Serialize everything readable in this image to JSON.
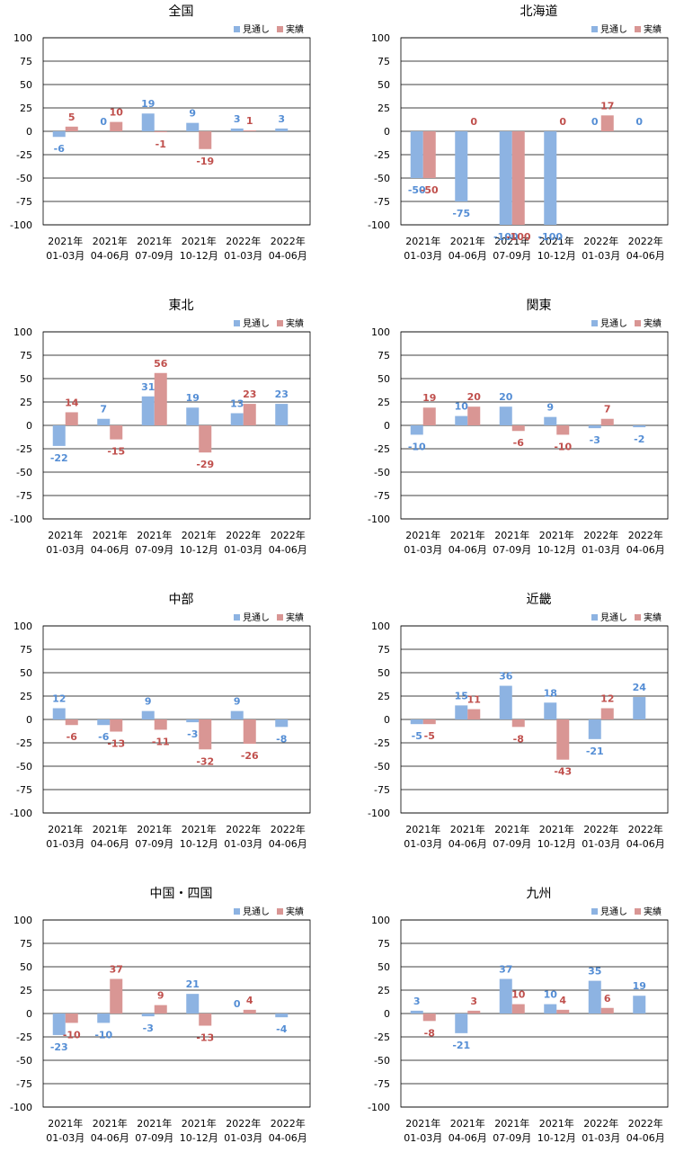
{
  "legend": {
    "forecast": "見通し",
    "actual": "実績"
  },
  "colors": {
    "forecast": "#8db3e2",
    "actual": "#d99694",
    "forecast_label": "#558ed5",
    "actual_label": "#c0504d",
    "grid": "#000000"
  },
  "chart_data": [
    {
      "type": "bar",
      "title": "全国",
      "categories": [
        [
          "2021年",
          "01-03月"
        ],
        [
          "2021年",
          "04-06月"
        ],
        [
          "2021年",
          "07-09月"
        ],
        [
          "2021年",
          "10-12月"
        ],
        [
          "2022年",
          "01-03月"
        ],
        [
          "2022年",
          "04-06月"
        ]
      ],
      "yticks": [
        "100",
        "75",
        "50",
        "25",
        "0",
        "-25",
        "-50",
        "-75",
        "-100"
      ],
      "ylim": [
        -100,
        100
      ],
      "grid": true,
      "legend_position": "top-right",
      "series": [
        {
          "name": "見通し",
          "values": [
            -6,
            0,
            19,
            9,
            3,
            3
          ]
        },
        {
          "name": "実績",
          "values": [
            5,
            10,
            -1,
            -19,
            1,
            null
          ]
        }
      ]
    },
    {
      "type": "bar",
      "title": "北海道",
      "categories": [
        [
          "2021年",
          "01-03月"
        ],
        [
          "2021年",
          "04-06月"
        ],
        [
          "2021年",
          "07-09月"
        ],
        [
          "2021年",
          "10-12月"
        ],
        [
          "2022年",
          "01-03月"
        ],
        [
          "2022年",
          "04-06月"
        ]
      ],
      "yticks": [
        "100",
        "75",
        "50",
        "25",
        "0",
        "-25",
        "-50",
        "-75",
        "-100"
      ],
      "ylim": [
        -100,
        100
      ],
      "grid": true,
      "legend_position": "top-right",
      "series": [
        {
          "name": "見通し",
          "values": [
            -50,
            -75,
            -100,
            -100,
            0,
            0
          ]
        },
        {
          "name": "実績",
          "values": [
            -50,
            0,
            -100,
            0,
            17,
            null
          ]
        }
      ]
    },
    {
      "type": "bar",
      "title": "東北",
      "categories": [
        [
          "2021年",
          "01-03月"
        ],
        [
          "2021年",
          "04-06月"
        ],
        [
          "2021年",
          "07-09月"
        ],
        [
          "2021年",
          "10-12月"
        ],
        [
          "2022年",
          "01-03月"
        ],
        [
          "2022年",
          "04-06月"
        ]
      ],
      "yticks": [
        "100",
        "75",
        "50",
        "25",
        "0",
        "-25",
        "-50",
        "-75",
        "-100"
      ],
      "ylim": [
        -100,
        100
      ],
      "grid": true,
      "legend_position": "top-right",
      "series": [
        {
          "name": "見通し",
          "values": [
            -22,
            7,
            31,
            19,
            13,
            23
          ]
        },
        {
          "name": "実績",
          "values": [
            14,
            -15,
            56,
            -29,
            23,
            null
          ]
        }
      ]
    },
    {
      "type": "bar",
      "title": "関東",
      "categories": [
        [
          "2021年",
          "01-03月"
        ],
        [
          "2021年",
          "04-06月"
        ],
        [
          "2021年",
          "07-09月"
        ],
        [
          "2021年",
          "10-12月"
        ],
        [
          "2022年",
          "01-03月"
        ],
        [
          "2022年",
          "04-06月"
        ]
      ],
      "yticks": [
        "100",
        "75",
        "50",
        "25",
        "0",
        "-25",
        "-50",
        "-75",
        "-100"
      ],
      "ylim": [
        -100,
        100
      ],
      "grid": true,
      "legend_position": "top-right",
      "series": [
        {
          "name": "見通し",
          "values": [
            -10,
            10,
            20,
            9,
            -3,
            -2
          ]
        },
        {
          "name": "実績",
          "values": [
            19,
            20,
            -6,
            -10,
            7,
            null
          ]
        }
      ]
    },
    {
      "type": "bar",
      "title": "中部",
      "categories": [
        [
          "2021年",
          "01-03月"
        ],
        [
          "2021年",
          "04-06月"
        ],
        [
          "2021年",
          "07-09月"
        ],
        [
          "2021年",
          "10-12月"
        ],
        [
          "2022年",
          "01-03月"
        ],
        [
          "2022年",
          "04-06月"
        ]
      ],
      "yticks": [
        "100",
        "75",
        "50",
        "25",
        "0",
        "-25",
        "-50",
        "-75",
        "-100"
      ],
      "ylim": [
        -100,
        100
      ],
      "grid": true,
      "legend_position": "top-right",
      "series": [
        {
          "name": "見通し",
          "values": [
            12,
            -6,
            9,
            -3,
            9,
            -8
          ]
        },
        {
          "name": "実績",
          "values": [
            -6,
            -13,
            -11,
            -32,
            -26,
            null
          ]
        }
      ]
    },
    {
      "type": "bar",
      "title": "近畿",
      "categories": [
        [
          "2021年",
          "01-03月"
        ],
        [
          "2021年",
          "04-06月"
        ],
        [
          "2021年",
          "07-09月"
        ],
        [
          "2021年",
          "10-12月"
        ],
        [
          "2022年",
          "01-03月"
        ],
        [
          "2022年",
          "04-06月"
        ]
      ],
      "yticks": [
        "100",
        "75",
        "50",
        "25",
        "0",
        "-25",
        "-50",
        "-75",
        "-100"
      ],
      "ylim": [
        -100,
        100
      ],
      "grid": true,
      "legend_position": "top-right",
      "series": [
        {
          "name": "見通し",
          "values": [
            -5,
            15,
            36,
            18,
            -21,
            24
          ]
        },
        {
          "name": "実績",
          "values": [
            -5,
            11,
            -8,
            -43,
            12,
            null
          ]
        }
      ]
    },
    {
      "type": "bar",
      "title": "中国・四国",
      "categories": [
        [
          "2021年",
          "01-03月"
        ],
        [
          "2021年",
          "04-06月"
        ],
        [
          "2021年",
          "07-09月"
        ],
        [
          "2021年",
          "10-12月"
        ],
        [
          "2022年",
          "01-03月"
        ],
        [
          "2022年",
          "04-06月"
        ]
      ],
      "yticks": [
        "100",
        "75",
        "50",
        "25",
        "0",
        "-25",
        "-50",
        "-75",
        "-100"
      ],
      "ylim": [
        -100,
        100
      ],
      "grid": true,
      "legend_position": "top-right",
      "series": [
        {
          "name": "見通し",
          "values": [
            -23,
            -10,
            -3,
            21,
            0,
            -4
          ]
        },
        {
          "name": "実績",
          "values": [
            -10,
            37,
            9,
            -13,
            4,
            null
          ]
        }
      ]
    },
    {
      "type": "bar",
      "title": "九州",
      "categories": [
        [
          "2021年",
          "01-03月"
        ],
        [
          "2021年",
          "04-06月"
        ],
        [
          "2021年",
          "07-09月"
        ],
        [
          "2021年",
          "10-12月"
        ],
        [
          "2022年",
          "01-03月"
        ],
        [
          "2022年",
          "04-06月"
        ]
      ],
      "yticks": [
        "100",
        "75",
        "50",
        "25",
        "0",
        "-25",
        "-50",
        "-75",
        "-100"
      ],
      "ylim": [
        -100,
        100
      ],
      "grid": true,
      "legend_position": "top-right",
      "series": [
        {
          "name": "見通し",
          "values": [
            3,
            -21,
            37,
            10,
            35,
            19
          ]
        },
        {
          "name": "実績",
          "values": [
            -8,
            3,
            10,
            4,
            6,
            null
          ]
        }
      ]
    }
  ]
}
